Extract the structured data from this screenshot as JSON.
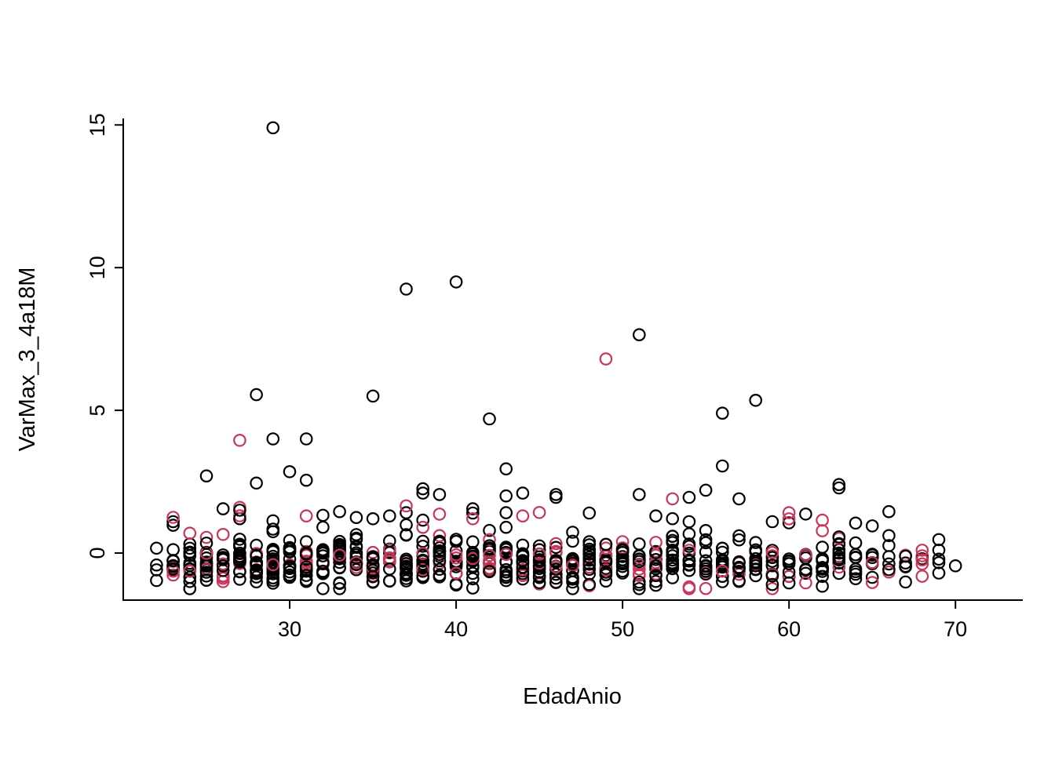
{
  "chart_data": {
    "type": "scatter",
    "title": "",
    "xlabel": "EdadAnio",
    "ylabel": "VarMax_3_4a18M",
    "xlim": [
      20,
      74
    ],
    "ylim": [
      -1.65,
      15.2
    ],
    "x_ticks": [
      30,
      40,
      50,
      60,
      70
    ],
    "y_ticks": [
      0,
      5,
      10,
      15
    ],
    "grid": "off",
    "legend": "none",
    "marker": "open-circle",
    "colors": {
      "black": "#000000",
      "red": "#C73759"
    },
    "outlier_points": [
      [
        29,
        14.9,
        "black"
      ],
      [
        40,
        9.5,
        "black"
      ],
      [
        37,
        9.25,
        "black"
      ],
      [
        51,
        7.65,
        "black"
      ],
      [
        49,
        6.8,
        "red"
      ],
      [
        28,
        5.55,
        "black"
      ],
      [
        35,
        5.5,
        "black"
      ],
      [
        58,
        5.35,
        "black"
      ],
      [
        56,
        4.9,
        "black"
      ],
      [
        42,
        4.7,
        "black"
      ],
      [
        29,
        4.0,
        "black"
      ],
      [
        31,
        4.0,
        "black"
      ],
      [
        27,
        3.95,
        "red"
      ],
      [
        56,
        3.05,
        "black"
      ],
      [
        43,
        2.95,
        "black"
      ],
      [
        30,
        2.85,
        "black"
      ],
      [
        25,
        2.7,
        "black"
      ],
      [
        31,
        2.55,
        "black"
      ],
      [
        28,
        2.45,
        "black"
      ],
      [
        63,
        2.4,
        "black"
      ],
      [
        63,
        2.28,
        "black"
      ],
      [
        38,
        2.25,
        "black"
      ],
      [
        38,
        2.1,
        "black"
      ],
      [
        39,
        2.05,
        "black"
      ],
      [
        44,
        2.1,
        "black"
      ],
      [
        43,
        2.0,
        "black"
      ],
      [
        46,
        2.05,
        "black"
      ],
      [
        46,
        1.95,
        "black"
      ],
      [
        51,
        2.05,
        "black"
      ],
      [
        55,
        2.2,
        "black"
      ],
      [
        54,
        1.95,
        "black"
      ],
      [
        57,
        1.9,
        "black"
      ],
      [
        53,
        1.9,
        "red"
      ],
      [
        66,
        1.45,
        "black"
      ],
      [
        37,
        1.65,
        "red"
      ],
      [
        27,
        1.6,
        "red"
      ],
      [
        26,
        1.55,
        "black"
      ],
      [
        27,
        1.5,
        "black"
      ],
      [
        23,
        1.25,
        "red"
      ],
      [
        62,
        1.15,
        "red"
      ],
      [
        41,
        1.55,
        "black"
      ],
      [
        41,
        1.4,
        "black"
      ],
      [
        41,
        1.2,
        "red"
      ],
      [
        36,
        1.3,
        "black"
      ],
      [
        44,
        1.3,
        "red"
      ],
      [
        33,
        1.45,
        "black"
      ],
      [
        48,
        1.4,
        "black"
      ],
      [
        52,
        1.3,
        "black"
      ],
      [
        59,
        1.1,
        "black"
      ],
      [
        64,
        1.05,
        "black"
      ],
      [
        65,
        0.95,
        "black"
      ],
      [
        31,
        1.3,
        "red"
      ],
      [
        35,
        1.2,
        "black"
      ],
      [
        70,
        -0.45,
        "black"
      ]
    ],
    "cluster": {
      "description": "dense band of open circles between y=-1.25 and y=0.9 at each integer age",
      "seed": 12345,
      "red_fraction": 0.22,
      "y_mean": -0.35,
      "y_sd": 0.4,
      "y_min": -1.25,
      "y_max": 0.9,
      "high_tail_prob": 0.04,
      "high_tail_range": [
        0.35,
        1.45
      ],
      "counts_by_age": [
        [
          22,
          4
        ],
        [
          23,
          14
        ],
        [
          24,
          16
        ],
        [
          25,
          18
        ],
        [
          26,
          16
        ],
        [
          27,
          20
        ],
        [
          28,
          22
        ],
        [
          29,
          24
        ],
        [
          30,
          18
        ],
        [
          31,
          20
        ],
        [
          32,
          16
        ],
        [
          33,
          18
        ],
        [
          34,
          16
        ],
        [
          35,
          18
        ],
        [
          36,
          16
        ],
        [
          37,
          18
        ],
        [
          38,
          20
        ],
        [
          39,
          18
        ],
        [
          40,
          16
        ],
        [
          41,
          16
        ],
        [
          42,
          16
        ],
        [
          43,
          18
        ],
        [
          44,
          16
        ],
        [
          45,
          18
        ],
        [
          46,
          16
        ],
        [
          47,
          14
        ],
        [
          48,
          16
        ],
        [
          49,
          14
        ],
        [
          50,
          14
        ],
        [
          51,
          14
        ],
        [
          52,
          14
        ],
        [
          53,
          16
        ],
        [
          54,
          14
        ],
        [
          55,
          12
        ],
        [
          56,
          14
        ],
        [
          57,
          12
        ],
        [
          58,
          12
        ],
        [
          59,
          12
        ],
        [
          60,
          12
        ],
        [
          61,
          10
        ],
        [
          62,
          12
        ],
        [
          63,
          12
        ],
        [
          64,
          8
        ],
        [
          65,
          8
        ],
        [
          66,
          6
        ],
        [
          67,
          6
        ],
        [
          68,
          6
        ],
        [
          69,
          5
        ],
        [
          70,
          0
        ]
      ]
    }
  }
}
